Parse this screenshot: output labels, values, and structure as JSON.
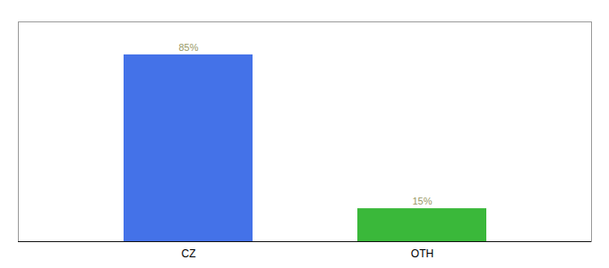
{
  "chart_data": {
    "type": "bar",
    "categories": [
      "CZ",
      "OTH"
    ],
    "values": [
      85,
      15
    ],
    "value_labels": [
      "85%",
      "15%"
    ],
    "colors": [
      "#4472e8",
      "#3ab83a"
    ],
    "ylim": [
      0,
      100
    ],
    "data_labels": true,
    "tick_labels": "x",
    "grid": false
  }
}
